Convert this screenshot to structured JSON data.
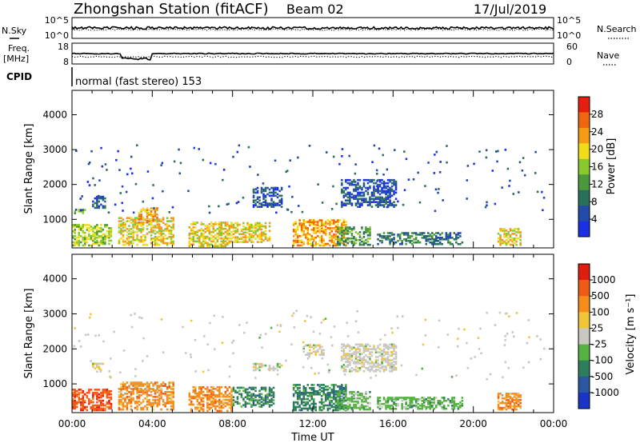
{
  "header": {
    "station": "Zhongshan Station (fitACF)",
    "beam": "Beam 02",
    "date": "17/Jul/2019",
    "nsky_label": "N.Sky",
    "nsearch_label": "N.Search",
    "freq_label_1": "Freq.",
    "freq_label_2": "[MHz]",
    "nave_label": "Nave",
    "cpid_label": "CPID",
    "cpid_value": "normal (fast stereo) 153",
    "noise_ticks_left": [
      "10^5",
      "10^0"
    ],
    "noise_ticks_right": [
      "10^5",
      "10^0"
    ],
    "freq_ticks": [
      "18",
      "8"
    ],
    "nave_ticks": [
      "60",
      "0"
    ]
  },
  "chart_data": [
    {
      "type": "heatmap",
      "name": "power",
      "ylabel": "Slant Range [km]",
      "yticks": [
        1000,
        2000,
        3000,
        4000
      ],
      "ylim": [
        180,
        4700
      ],
      "xlim_hours": [
        0,
        24
      ],
      "colorbar_label": "Power [dB]",
      "colorbar_ticks": [
        "28",
        "24",
        "20",
        "16",
        "12",
        "8",
        "4"
      ],
      "colors": [
        "#1a2fe6",
        "#234ca8",
        "#2a6f5c",
        "#4a9a3c",
        "#88c92e",
        "#f2dc1a",
        "#f59a12",
        "#f0650f",
        "#e61e10"
      ],
      "echo_regions": [
        {
          "t": [
            0.1,
            0.7
          ],
          "r": [
            1150,
            1280
          ],
          "level": 3
        },
        {
          "t": [
            0.0,
            2.0
          ],
          "r": [
            220,
            850
          ],
          "level": 4
        },
        {
          "t": [
            1.0,
            1.7
          ],
          "r": [
            1300,
            1650
          ],
          "level": 1
        },
        {
          "t": [
            2.3,
            5.0
          ],
          "r": [
            240,
            1050
          ],
          "level": 5
        },
        {
          "t": [
            3.3,
            4.2
          ],
          "r": [
            880,
            1300
          ],
          "level": 6
        },
        {
          "t": [
            5.8,
            7.9
          ],
          "r": [
            200,
            900
          ],
          "level": 5
        },
        {
          "t": [
            8.0,
            9.8
          ],
          "r": [
            320,
            900
          ],
          "level": 5
        },
        {
          "t": [
            9.0,
            10.4
          ],
          "r": [
            1330,
            1900
          ],
          "level": 1
        },
        {
          "t": [
            11.0,
            13.6
          ],
          "r": [
            220,
            950
          ],
          "level": 6
        },
        {
          "t": [
            13.2,
            14.8
          ],
          "r": [
            240,
            760
          ],
          "level": 3
        },
        {
          "t": [
            13.4,
            16.1
          ],
          "r": [
            1330,
            2100
          ],
          "level": 1
        },
        {
          "t": [
            15.2,
            19.5
          ],
          "r": [
            260,
            600
          ],
          "level": 2
        },
        {
          "t": [
            21.2,
            22.4
          ],
          "r": [
            240,
            700
          ],
          "level": 5
        }
      ]
    },
    {
      "type": "heatmap",
      "name": "velocity",
      "ylabel": "Slant Range [km]",
      "xlabel": "Time UT",
      "yticks": [
        1000,
        2000,
        3000,
        4000
      ],
      "xticks": [
        "00:00",
        "04:00",
        "08:00",
        "12:00",
        "16:00",
        "20:00",
        "00:00"
      ],
      "ylim": [
        180,
        4700
      ],
      "xlim_hours": [
        0,
        24
      ],
      "colorbar_label": "Velocity [m s⁻¹]",
      "colorbar_ticks": [
        "1000",
        "500",
        "100",
        "25",
        "-25",
        "-100",
        "-500",
        "-1000"
      ],
      "colors": [
        "#1a34c8",
        "#2a57a0",
        "#2e7d5b",
        "#55b241",
        "#c8c8c0",
        "#f2c43a",
        "#f58d1a",
        "#ef5a14",
        "#e01e10"
      ],
      "echo_regions": [
        {
          "t": [
            0.0,
            2.0
          ],
          "r": [
            220,
            850
          ],
          "color_index": 7
        },
        {
          "t": [
            1.0,
            1.7
          ],
          "r": [
            1320,
            1560
          ],
          "color_index": 4
        },
        {
          "t": [
            2.3,
            5.0
          ],
          "r": [
            240,
            1050
          ],
          "color_index": 6
        },
        {
          "t": [
            5.8,
            7.9
          ],
          "r": [
            200,
            900
          ],
          "color_index": 6
        },
        {
          "t": [
            8.0,
            10.0
          ],
          "r": [
            320,
            900
          ],
          "color_index": 2
        },
        {
          "t": [
            9.0,
            10.4
          ],
          "r": [
            1360,
            1560
          ],
          "color_index": 4
        },
        {
          "t": [
            11.0,
            13.6
          ],
          "r": [
            220,
            950
          ],
          "color_index": 2
        },
        {
          "t": [
            11.5,
            12.5
          ],
          "r": [
            1800,
            2100
          ],
          "color_index": 4
        },
        {
          "t": [
            13.4,
            16.1
          ],
          "r": [
            1330,
            2100
          ],
          "color_index": 4
        },
        {
          "t": [
            13.2,
            14.8
          ],
          "r": [
            240,
            760
          ],
          "color_index": 3
        },
        {
          "t": [
            15.2,
            19.5
          ],
          "r": [
            260,
            600
          ],
          "color_index": 3
        },
        {
          "t": [
            21.2,
            22.4
          ],
          "r": [
            240,
            700
          ],
          "color_index": 6
        }
      ]
    }
  ]
}
